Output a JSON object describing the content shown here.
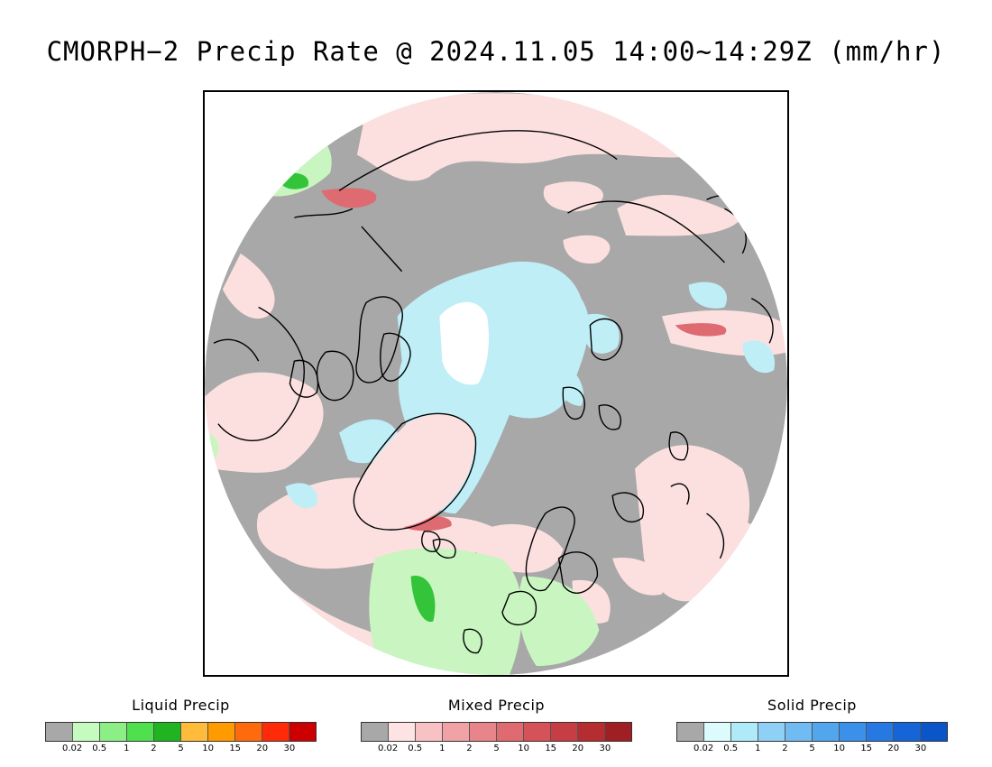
{
  "title": "CMORPH−2 Precip Rate @ 2024.11.05 14:00~14:29Z (mm/hr)",
  "map": {
    "projection": "north polar stereographic",
    "colors": {
      "no_precip": "#a8a8a8",
      "liquid_light": "#c8f5c0",
      "liquid_mid": "#7fe38a",
      "liquid_high": "#33c43a",
      "mixed_light": "#fce0e0",
      "mixed_mid": "#f0a3a8",
      "mixed_high": "#de6b72",
      "solid_light": "#dff8fb",
      "solid_mid": "#bfeef7",
      "coastline": "#000000"
    }
  },
  "legends": [
    {
      "title": "Liquid Precip",
      "ticks": [
        "0.02",
        "0.5",
        "1",
        "2",
        "5",
        "10",
        "15",
        "20",
        "30"
      ],
      "colors": [
        "#a8a8a8",
        "#c6fbc0",
        "#8bef86",
        "#4fe04d",
        "#20b421",
        "#ffbb3a",
        "#ff9a00",
        "#ff6a0d",
        "#ff2a08",
        "#cc0000"
      ]
    },
    {
      "title": "Mixed Precip",
      "ticks": [
        "0.02",
        "0.5",
        "1",
        "2",
        "5",
        "10",
        "15",
        "20",
        "30"
      ],
      "colors": [
        "#a8a8a8",
        "#fde3e3",
        "#f8c2c4",
        "#f1a2a5",
        "#e8858a",
        "#df6a70",
        "#d45258",
        "#c63d43",
        "#b52c31",
        "#9f1f23"
      ]
    },
    {
      "title": "Solid Precip",
      "ticks": [
        "0.02",
        "0.5",
        "1",
        "2",
        "5",
        "10",
        "15",
        "20",
        "30"
      ],
      "colors": [
        "#a8a8a8",
        "#dcfbfd",
        "#aeeaf7",
        "#8fd0f7",
        "#6fbbf2",
        "#52a6ee",
        "#3b90ea",
        "#2679e3",
        "#1565d8",
        "#0a55c8"
      ]
    }
  ]
}
